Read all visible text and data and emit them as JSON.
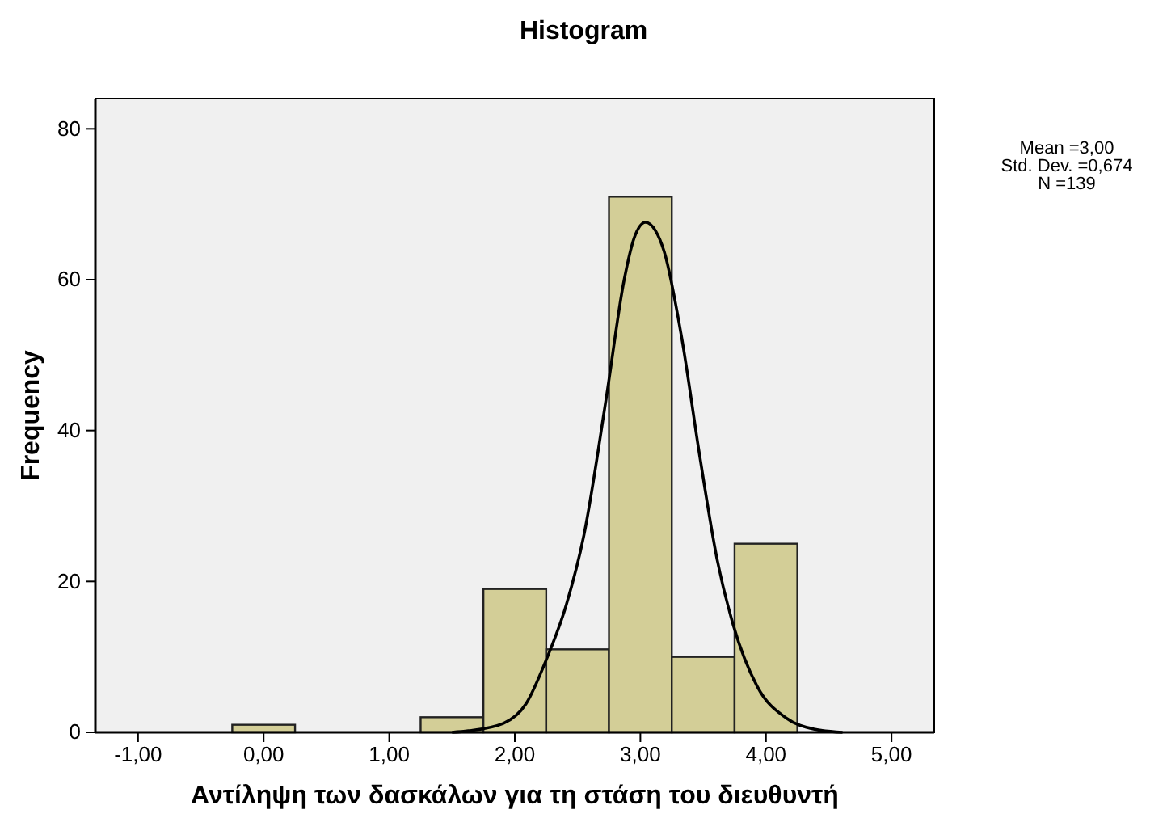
{
  "chart_data": {
    "type": "histogram",
    "title": "Histogram",
    "xlabel": "Αντίληψη των δασκάλων για τη στάση του διευθυντή",
    "ylabel": "Frequency",
    "bins": [
      -0.25,
      0.25,
      0.75,
      1.25,
      1.75,
      2.25,
      2.75,
      3.25,
      3.75,
      4.25
    ],
    "values": [
      1,
      0,
      0,
      2,
      19,
      11,
      71,
      10,
      25
    ],
    "color": "#d3ce97",
    "series": [
      {
        "type": "line",
        "color": "#000000",
        "x": [
          1.5,
          1.63,
          1.91,
          2.09,
          2.25,
          2.41,
          2.55,
          2.73,
          2.87,
          2.95,
          3.04,
          3.12,
          3.19,
          3.33,
          3.47,
          3.61,
          3.74,
          3.93,
          4.16,
          4.39,
          4.61
        ],
        "values": [
          0,
          0.2,
          1.2,
          3.8,
          9.6,
          16.9,
          26.1,
          44.5,
          59.9,
          65.5,
          67.6,
          66.5,
          63.7,
          52.2,
          36.9,
          23,
          14.2,
          6.1,
          1.9,
          0.4,
          0
        ]
      }
    ],
    "xlim": [
      -1.34,
      5.34
    ],
    "xticks": [
      {
        "value": -1,
        "label": "-1,00"
      },
      {
        "value": 0,
        "label": "0,00"
      },
      {
        "value": 1,
        "label": "1,00"
      },
      {
        "value": 2,
        "label": "2,00"
      },
      {
        "value": 3,
        "label": "3,00"
      },
      {
        "value": 4,
        "label": "4,00"
      },
      {
        "value": 5,
        "label": "5,00"
      }
    ],
    "ylim": [
      0,
      84
    ],
    "yticks": [
      0,
      20,
      40,
      60,
      80
    ],
    "annotations": [
      "Mean =3,00",
      "Std. Dev. =0,674",
      "N =139"
    ]
  }
}
